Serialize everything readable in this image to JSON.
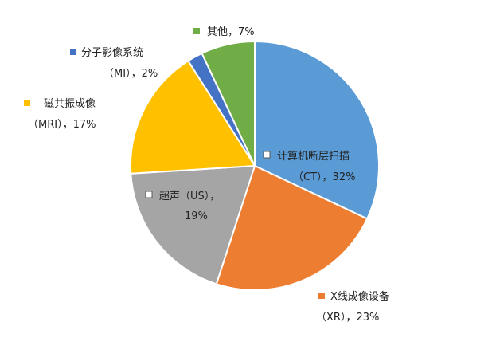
{
  "chart_data": {
    "type": "pie",
    "names": [
      "计算机断层扫描",
      "X线成像设备",
      "超声",
      "磁共振成像",
      "分子影像系统",
      "其他"
    ],
    "codes": [
      "（CT）",
      "（XR）",
      "（US）",
      "（MRI）",
      "（MI）",
      null
    ],
    "label_separator": "，",
    "values": [
      32,
      23,
      19,
      17,
      2,
      7
    ],
    "value_labels": [
      "32%",
      "23%",
      "19%",
      "17%",
      "2%",
      "7%"
    ],
    "colors": [
      "#5b9bd5",
      "#ed7d31",
      "#a5a5a5",
      "#ffc000",
      "#4472c4",
      "#70ad47"
    ]
  }
}
